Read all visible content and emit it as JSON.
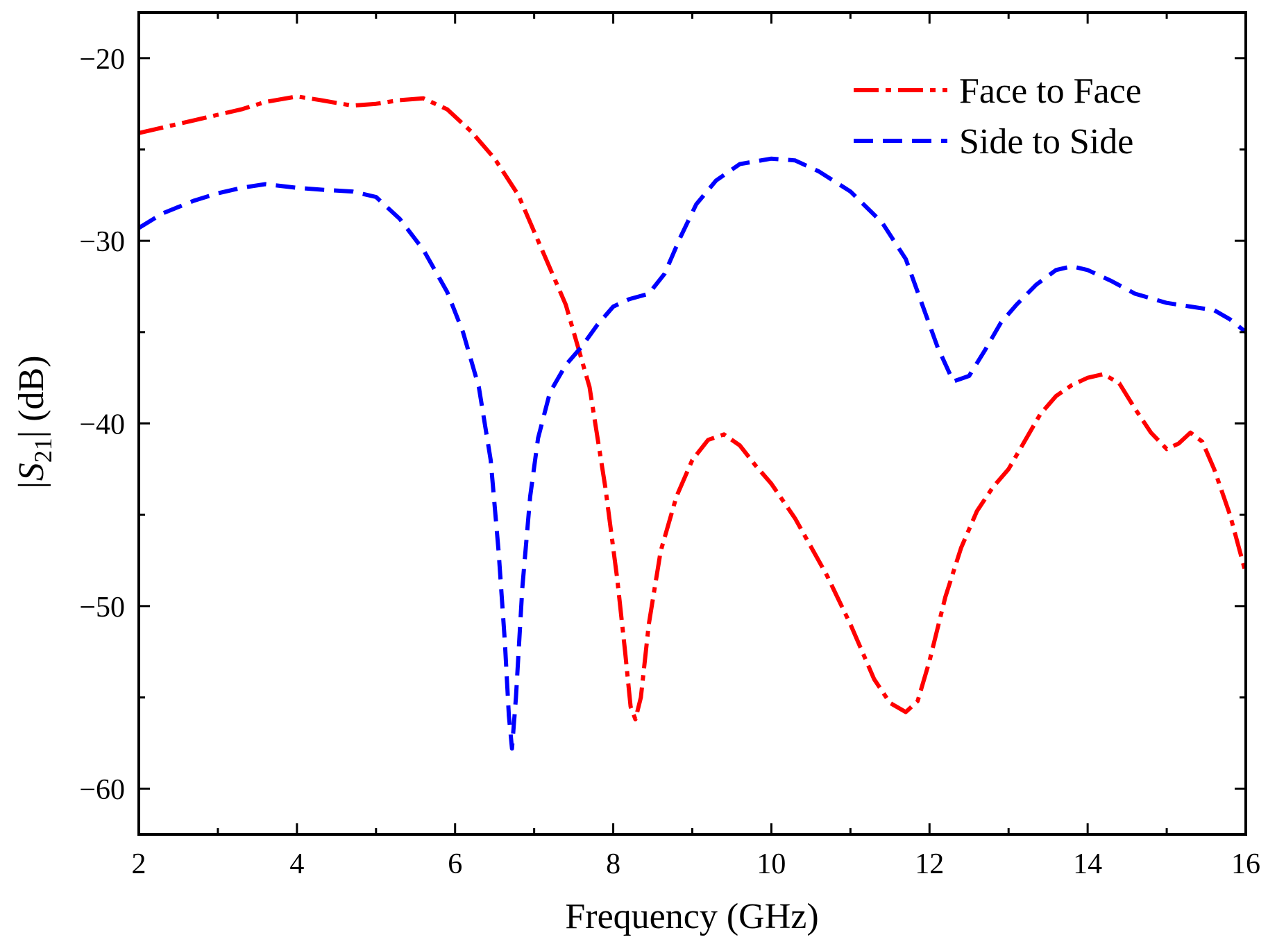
{
  "chart_data": {
    "type": "line",
    "title": "",
    "xlabel": "Frequency (GHz)",
    "ylabel": {
      "prefix": "|S",
      "sub": "21",
      "suffix": "| (dB)"
    },
    "xlim": [
      2,
      16
    ],
    "ylim": [
      -62.5,
      -17.5
    ],
    "xticks": [
      2,
      4,
      6,
      8,
      10,
      12,
      14,
      16
    ],
    "xtick_labels": [
      "2",
      "4",
      "6",
      "8",
      "10",
      "12",
      "14",
      "16"
    ],
    "xminor": [
      3,
      5,
      7,
      9,
      11,
      13,
      15
    ],
    "yticks": [
      -20,
      -30,
      -40,
      -50,
      -60
    ],
    "ytick_labels": [
      "−20",
      "−30",
      "−40",
      "−50",
      "−60"
    ],
    "legend_position": "top-right",
    "series": [
      {
        "name": "Face to Face",
        "color": "#ff0000",
        "style": "dash-dot",
        "points": [
          [
            2.0,
            -24.1
          ],
          [
            2.3,
            -23.8
          ],
          [
            2.7,
            -23.4
          ],
          [
            3.0,
            -23.1
          ],
          [
            3.3,
            -22.8
          ],
          [
            3.6,
            -22.4
          ],
          [
            4.0,
            -22.1
          ],
          [
            4.3,
            -22.3
          ],
          [
            4.7,
            -22.6
          ],
          [
            5.0,
            -22.5
          ],
          [
            5.3,
            -22.3
          ],
          [
            5.6,
            -22.2
          ],
          [
            5.9,
            -22.8
          ],
          [
            6.2,
            -24.0
          ],
          [
            6.5,
            -25.5
          ],
          [
            6.8,
            -27.5
          ],
          [
            7.1,
            -30.5
          ],
          [
            7.4,
            -33.5
          ],
          [
            7.7,
            -38.0
          ],
          [
            7.9,
            -43.5
          ],
          [
            8.05,
            -48.5
          ],
          [
            8.15,
            -52.5
          ],
          [
            8.22,
            -55.5
          ],
          [
            8.28,
            -56.2
          ],
          [
            8.35,
            -55.0
          ],
          [
            8.45,
            -51.0
          ],
          [
            8.6,
            -47.0
          ],
          [
            8.8,
            -44.0
          ],
          [
            9.0,
            -42.0
          ],
          [
            9.2,
            -40.9
          ],
          [
            9.4,
            -40.6
          ],
          [
            9.6,
            -41.2
          ],
          [
            9.8,
            -42.3
          ],
          [
            10.0,
            -43.3
          ],
          [
            10.3,
            -45.2
          ],
          [
            10.7,
            -48.3
          ],
          [
            11.0,
            -51.0
          ],
          [
            11.3,
            -54.0
          ],
          [
            11.5,
            -55.3
          ],
          [
            11.7,
            -55.8
          ],
          [
            11.85,
            -55.2
          ],
          [
            12.0,
            -53.0
          ],
          [
            12.2,
            -49.5
          ],
          [
            12.4,
            -46.8
          ],
          [
            12.6,
            -44.8
          ],
          [
            12.8,
            -43.5
          ],
          [
            13.0,
            -42.5
          ],
          [
            13.2,
            -41.0
          ],
          [
            13.4,
            -39.5
          ],
          [
            13.6,
            -38.5
          ],
          [
            13.8,
            -37.9
          ],
          [
            14.0,
            -37.5
          ],
          [
            14.2,
            -37.3
          ],
          [
            14.4,
            -37.8
          ],
          [
            14.6,
            -39.2
          ],
          [
            14.8,
            -40.5
          ],
          [
            15.0,
            -41.4
          ],
          [
            15.15,
            -41.1
          ],
          [
            15.3,
            -40.5
          ],
          [
            15.45,
            -41.0
          ],
          [
            15.6,
            -42.5
          ],
          [
            15.8,
            -45.0
          ],
          [
            16.0,
            -48.2
          ]
        ]
      },
      {
        "name": "Side to Side",
        "color": "#0000ff",
        "style": "dash",
        "points": [
          [
            2.0,
            -29.3
          ],
          [
            2.3,
            -28.5
          ],
          [
            2.7,
            -27.8
          ],
          [
            3.0,
            -27.4
          ],
          [
            3.3,
            -27.1
          ],
          [
            3.6,
            -26.9
          ],
          [
            4.0,
            -27.1
          ],
          [
            4.3,
            -27.2
          ],
          [
            4.7,
            -27.3
          ],
          [
            5.0,
            -27.6
          ],
          [
            5.3,
            -28.8
          ],
          [
            5.6,
            -30.5
          ],
          [
            5.9,
            -32.8
          ],
          [
            6.1,
            -35.0
          ],
          [
            6.3,
            -38.0
          ],
          [
            6.45,
            -42.0
          ],
          [
            6.55,
            -47.0
          ],
          [
            6.63,
            -52.0
          ],
          [
            6.68,
            -56.0
          ],
          [
            6.72,
            -57.8
          ],
          [
            6.77,
            -55.0
          ],
          [
            6.85,
            -49.0
          ],
          [
            6.95,
            -44.0
          ],
          [
            7.05,
            -40.8
          ],
          [
            7.2,
            -38.3
          ],
          [
            7.4,
            -36.8
          ],
          [
            7.6,
            -35.8
          ],
          [
            7.8,
            -34.6
          ],
          [
            8.0,
            -33.6
          ],
          [
            8.2,
            -33.2
          ],
          [
            8.45,
            -32.9
          ],
          [
            8.65,
            -31.8
          ],
          [
            8.85,
            -29.8
          ],
          [
            9.05,
            -28.0
          ],
          [
            9.3,
            -26.7
          ],
          [
            9.6,
            -25.8
          ],
          [
            10.0,
            -25.5
          ],
          [
            10.3,
            -25.6
          ],
          [
            10.6,
            -26.2
          ],
          [
            11.0,
            -27.3
          ],
          [
            11.4,
            -29.0
          ],
          [
            11.7,
            -31.0
          ],
          [
            11.9,
            -33.4
          ],
          [
            12.1,
            -35.8
          ],
          [
            12.3,
            -37.7
          ],
          [
            12.5,
            -37.4
          ],
          [
            12.7,
            -36.0
          ],
          [
            12.9,
            -34.5
          ],
          [
            13.1,
            -33.5
          ],
          [
            13.35,
            -32.4
          ],
          [
            13.6,
            -31.6
          ],
          [
            13.8,
            -31.4
          ],
          [
            14.0,
            -31.6
          ],
          [
            14.3,
            -32.2
          ],
          [
            14.6,
            -32.9
          ],
          [
            15.0,
            -33.4
          ],
          [
            15.3,
            -33.6
          ],
          [
            15.6,
            -33.8
          ],
          [
            15.8,
            -34.3
          ],
          [
            16.0,
            -35.0
          ]
        ]
      }
    ]
  }
}
